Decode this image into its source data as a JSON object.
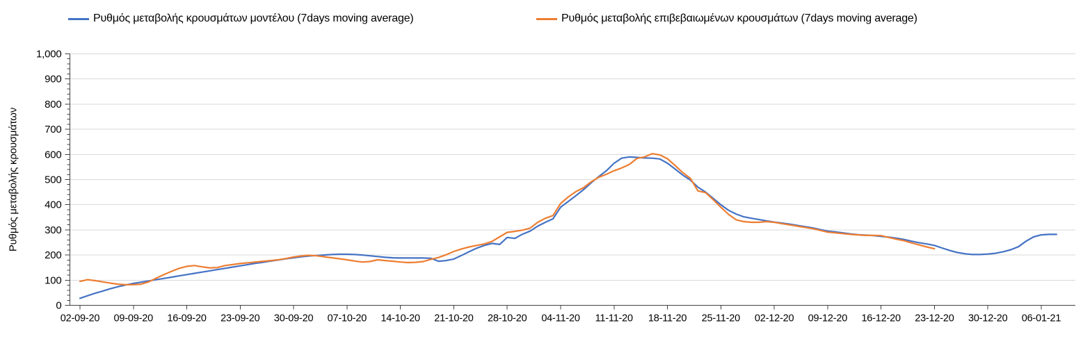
{
  "chart_data": {
    "type": "line",
    "ylabel": "Ρυθμός μεταβολής κρουσμάτων",
    "ylim": [
      0,
      1000
    ],
    "y_major_step": 100,
    "y_minor_step": 20,
    "y_tick_labels": [
      "0",
      "100",
      "200",
      "300",
      "400",
      "500",
      "600",
      "700",
      "800",
      "900",
      "1,000"
    ],
    "x_tick_labels": [
      "02-09-20",
      "09-09-20",
      "16-09-20",
      "23-09-20",
      "30-09-20",
      "07-10-20",
      "14-10-20",
      "21-10-20",
      "28-10-20",
      "04-11-20",
      "11-11-20",
      "18-11-20",
      "25-11-20",
      "02-12-20",
      "09-12-20",
      "16-12-20",
      "23-12-20",
      "30-12-20",
      "06-01-21"
    ],
    "x_days_per_tick": 7,
    "grid": "horizontal",
    "legend_position": "top",
    "colors": {
      "gridline": "#d9d9d9",
      "axis": "#404040",
      "text": "#000000"
    },
    "series": [
      {
        "name": "Ρυθμός μεταβολής κρουσμάτων μοντέλου (7days moving average)",
        "color": "#4472c4",
        "start_day": 0,
        "first_date": "02-09-20",
        "last_date": "08-01-21",
        "values": [
          28,
          38,
          48,
          57,
          66,
          74,
          81,
          87,
          92,
          97,
          102,
          107,
          112,
          117,
          122,
          127,
          132,
          137,
          142,
          147,
          152,
          157,
          162,
          167,
          171,
          176,
          180,
          185,
          189,
          193,
          196,
          198,
          200,
          202,
          203,
          203,
          202,
          200,
          197,
          194,
          191,
          189,
          188,
          188,
          188,
          188,
          187,
          175,
          178,
          184,
          198,
          213,
          227,
          238,
          246,
          242,
          270,
          266,
          283,
          295,
          315,
          330,
          344,
          390,
          413,
          436,
          460,
          487,
          512,
          535,
          565,
          585,
          590,
          588,
          586,
          585,
          582,
          565,
          542,
          518,
          498,
          470,
          450,
          425,
          400,
          378,
          363,
          352,
          346,
          341,
          336,
          331,
          327,
          323,
          318,
          313,
          308,
          301,
          295,
          292,
          288,
          284,
          281,
          279,
          277,
          274,
          271,
          267,
          262,
          255,
          249,
          244,
          238,
          228,
          218,
          210,
          205,
          202,
          202,
          204,
          207,
          213,
          221,
          233,
          255,
          272,
          280,
          282,
          282
        ]
      },
      {
        "name": "Ρυθμός μεταβολής επιβεβαιωμένων κρουσμάτων (7days moving average)",
        "color": "#ed7d31",
        "start_day": 0,
        "first_date": "02-09-20",
        "last_date": "23-12-20",
        "values": [
          95,
          102,
          98,
          93,
          88,
          84,
          82,
          82,
          84,
          93,
          108,
          122,
          135,
          147,
          155,
          158,
          153,
          149,
          150,
          158,
          162,
          166,
          169,
          172,
          175,
          178,
          181,
          186,
          192,
          196,
          199,
          197,
          193,
          189,
          185,
          181,
          176,
          172,
          174,
          181,
          178,
          175,
          172,
          170,
          171,
          174,
          183,
          190,
          201,
          214,
          224,
          232,
          238,
          244,
          254,
          272,
          290,
          294,
          299,
          307,
          330,
          346,
          357,
          405,
          431,
          452,
          468,
          491,
          509,
          521,
          535,
          546,
          560,
          584,
          590,
          603,
          598,
          583,
          556,
          528,
          505,
          455,
          448,
          420,
          390,
          362,
          340,
          333,
          330,
          330,
          333,
          330,
          325,
          320,
          315,
          310,
          305,
          298,
          291,
          288,
          285,
          282,
          280,
          278,
          278,
          277,
          270,
          263,
          257,
          248,
          240,
          232,
          225
        ]
      }
    ]
  }
}
